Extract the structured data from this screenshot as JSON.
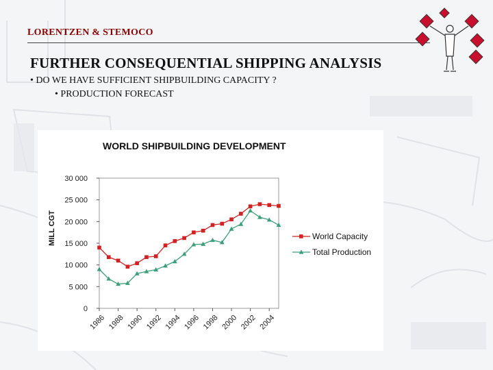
{
  "header": {
    "company": "LORENTZEN & STEMOCO",
    "title": "FURTHER CONSEQUENTIAL SHIPPING ANALYSIS",
    "bullets": [
      "• DO WE HAVE SUFFICIENT SHIPBUILDING CAPACITY ?",
      "• PRODUCTION FORECAST"
    ]
  },
  "colors": {
    "company_text": "#8b0000",
    "capacity": "#d42020",
    "production": "#3aa07a",
    "logo_flag": "#c8102e"
  },
  "chart_data": {
    "type": "line",
    "title": "WORLD SHIPBUILDING DEVELOPMENT",
    "xlabel": "",
    "ylabel": "MILL CGT",
    "x": [
      1986,
      1987,
      1988,
      1989,
      1990,
      1991,
      1992,
      1993,
      1994,
      1995,
      1996,
      1997,
      1998,
      1999,
      2000,
      2001,
      2002,
      2003,
      2004,
      2005
    ],
    "x_tick_labels": [
      "1986",
      "1988",
      "1990",
      "1992",
      "1994",
      "1996",
      "1998",
      "2000",
      "2002",
      "2004"
    ],
    "y_tick_labels": [
      "30 000",
      "25 000",
      "20 000",
      "15 000",
      "10 000",
      "5 000",
      "0"
    ],
    "ylim": [
      0,
      30000
    ],
    "grid": false,
    "legend_position": "right",
    "series": [
      {
        "name": "World Capacity",
        "marker": "square",
        "values": [
          14000,
          11800,
          11000,
          9600,
          10400,
          11800,
          12000,
          14500,
          15500,
          16200,
          17500,
          17900,
          19200,
          19500,
          20500,
          21800,
          23500,
          24000,
          23800,
          23600
        ]
      },
      {
        "name": "Total Production",
        "marker": "triangle",
        "values": [
          9000,
          6800,
          5600,
          5800,
          8000,
          8500,
          8900,
          9800,
          10800,
          12500,
          14700,
          14800,
          15700,
          15200,
          18300,
          19400,
          22500,
          21000,
          20400,
          19200
        ]
      }
    ]
  }
}
